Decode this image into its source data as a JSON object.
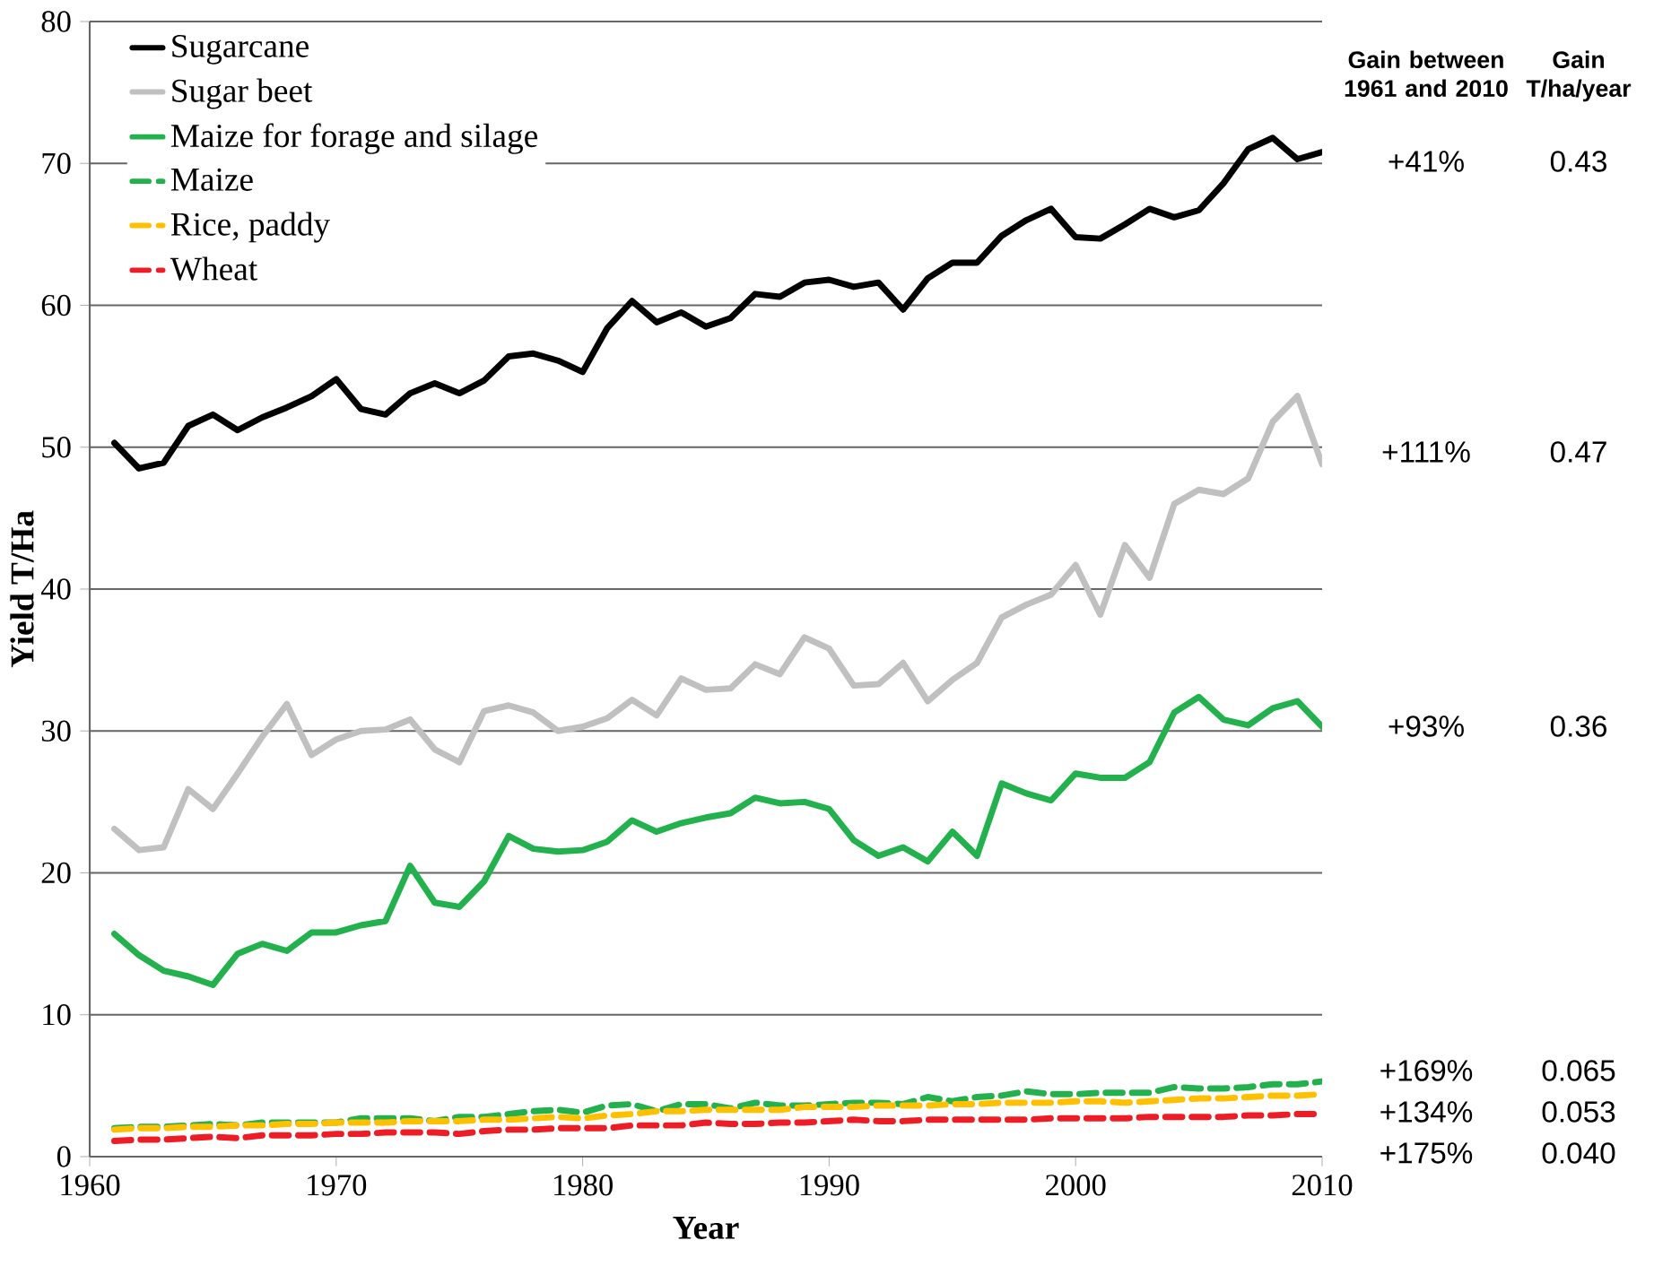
{
  "chart_data": {
    "type": "line",
    "xlabel": "Year",
    "ylabel": "Yield  T/Ha",
    "x": [
      1961,
      1962,
      1963,
      1964,
      1965,
      1966,
      1967,
      1968,
      1969,
      1970,
      1971,
      1972,
      1973,
      1974,
      1975,
      1976,
      1977,
      1978,
      1979,
      1980,
      1981,
      1982,
      1983,
      1984,
      1985,
      1986,
      1987,
      1988,
      1989,
      1990,
      1991,
      1992,
      1993,
      1994,
      1995,
      1996,
      1997,
      1998,
      1999,
      2000,
      2001,
      2002,
      2003,
      2004,
      2005,
      2006,
      2007,
      2008,
      2009,
      2010
    ],
    "xlim": [
      1960,
      2010
    ],
    "xticks": [
      1960,
      1970,
      1980,
      1990,
      2000,
      2010
    ],
    "ylim": [
      0,
      80
    ],
    "yticks": [
      0,
      10,
      20,
      30,
      40,
      50,
      60,
      70,
      80
    ],
    "grid": "y",
    "legend": "top left",
    "series": [
      {
        "name": "Sugarcane",
        "color": "#000000",
        "line_style": "solid",
        "values": [
          50.3,
          48.5,
          48.9,
          51.5,
          52.3,
          51.2,
          52.1,
          52.8,
          53.6,
          54.8,
          52.7,
          52.3,
          53.8,
          54.5,
          53.8,
          54.7,
          56.4,
          56.6,
          56.1,
          55.3,
          58.4,
          60.3,
          58.8,
          59.5,
          58.5,
          59.1,
          60.8,
          60.6,
          61.6,
          61.8,
          61.3,
          61.6,
          59.7,
          61.9,
          63.0,
          63.0,
          64.9,
          66.0,
          66.8,
          64.8,
          64.7,
          65.7,
          66.8,
          66.2,
          66.7,
          68.6,
          71.0,
          71.8,
          70.3,
          70.8
        ]
      },
      {
        "name": "Sugar beet",
        "color": "#c0c0c0",
        "line_style": "solid",
        "values": [
          23.1,
          21.6,
          21.8,
          25.9,
          24.5,
          27.0,
          29.6,
          31.9,
          28.3,
          29.4,
          30.0,
          30.1,
          30.8,
          28.7,
          27.8,
          31.4,
          31.8,
          31.3,
          30.0,
          30.3,
          30.9,
          32.2,
          31.1,
          33.7,
          32.9,
          33.0,
          34.7,
          34.0,
          36.6,
          35.8,
          33.2,
          33.3,
          34.8,
          32.1,
          33.6,
          34.8,
          38.0,
          38.9,
          39.6,
          41.7,
          38.2,
          43.1,
          40.8,
          46.0,
          47.0,
          46.7,
          47.8,
          51.8,
          53.6,
          48.8
        ]
      },
      {
        "name": "Maize for forage and silage",
        "color": "#22b14c",
        "line_style": "solid",
        "values": [
          15.7,
          14.2,
          13.1,
          12.7,
          12.1,
          14.3,
          15.0,
          14.5,
          15.8,
          15.8,
          16.3,
          16.6,
          20.5,
          17.9,
          17.6,
          19.4,
          22.6,
          21.7,
          21.5,
          21.6,
          22.2,
          23.7,
          22.9,
          23.5,
          23.9,
          24.2,
          25.3,
          24.9,
          25.0,
          24.5,
          22.3,
          21.2,
          21.8,
          20.8,
          22.9,
          21.2,
          26.3,
          25.6,
          25.1,
          27.0,
          26.7,
          26.7,
          27.8,
          31.3,
          32.4,
          30.8,
          30.4,
          31.6,
          32.1,
          30.3
        ]
      },
      {
        "name": "Maize",
        "color": "#22b14c",
        "line_style": "dashed",
        "values": [
          2.0,
          2.1,
          2.1,
          2.2,
          2.3,
          2.2,
          2.4,
          2.4,
          2.4,
          2.4,
          2.7,
          2.7,
          2.7,
          2.5,
          2.8,
          2.8,
          3.0,
          3.2,
          3.3,
          3.1,
          3.6,
          3.7,
          3.2,
          3.7,
          3.7,
          3.4,
          3.8,
          3.6,
          3.6,
          3.7,
          3.8,
          3.8,
          3.7,
          4.2,
          3.9,
          4.2,
          4.3,
          4.6,
          4.4,
          4.4,
          4.5,
          4.5,
          4.5,
          4.9,
          4.8,
          4.8,
          4.9,
          5.1,
          5.1,
          5.3
        ]
      },
      {
        "name": "Rice, paddy",
        "color": "#ffc000",
        "line_style": "dashed",
        "values": [
          1.9,
          2.0,
          2.0,
          2.1,
          2.1,
          2.2,
          2.2,
          2.3,
          2.3,
          2.4,
          2.4,
          2.4,
          2.5,
          2.5,
          2.5,
          2.6,
          2.6,
          2.7,
          2.8,
          2.7,
          2.9,
          3.0,
          3.2,
          3.2,
          3.3,
          3.3,
          3.3,
          3.3,
          3.5,
          3.5,
          3.5,
          3.6,
          3.6,
          3.6,
          3.7,
          3.7,
          3.8,
          3.8,
          3.8,
          3.9,
          3.9,
          3.8,
          3.9,
          4.0,
          4.1,
          4.1,
          4.2,
          4.3,
          4.3,
          4.4
        ]
      },
      {
        "name": "Wheat",
        "color": "#ee1c25",
        "line_style": "dashed",
        "values": [
          1.1,
          1.2,
          1.2,
          1.3,
          1.4,
          1.3,
          1.5,
          1.5,
          1.5,
          1.6,
          1.6,
          1.7,
          1.7,
          1.7,
          1.6,
          1.8,
          1.9,
          1.9,
          2.0,
          2.0,
          2.0,
          2.2,
          2.2,
          2.2,
          2.4,
          2.3,
          2.3,
          2.4,
          2.4,
          2.5,
          2.6,
          2.5,
          2.5,
          2.6,
          2.6,
          2.6,
          2.6,
          2.6,
          2.7,
          2.7,
          2.7,
          2.7,
          2.8,
          2.8,
          2.8,
          2.8,
          2.9,
          2.9,
          3.0,
          3.0
        ]
      }
    ],
    "annotations": [
      "Gain between 1961 and 2010",
      "Gain T/ha/year",
      "+41%",
      "0.43",
      "+111%",
      "0.47",
      "+93%",
      "0.36",
      "+169%",
      "0.065",
      "+134%",
      "0.053",
      "+175%",
      "0.040"
    ]
  }
}
